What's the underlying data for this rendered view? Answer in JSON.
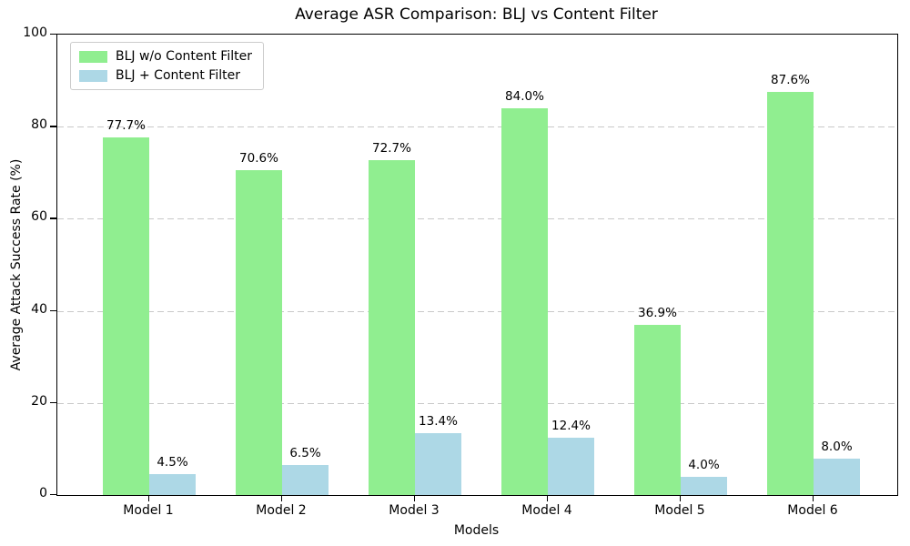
{
  "chart_data": {
    "type": "bar",
    "title": "Average ASR Comparison: BLJ vs Content Filter",
    "xlabel": "Models",
    "ylabel": "Average Attack Success Rate (%)",
    "categories": [
      "Model 1",
      "Model 2",
      "Model 3",
      "Model 4",
      "Model 5",
      "Model 6"
    ],
    "series": [
      {
        "name": "BLJ w/o Content Filter",
        "color": "#90EE90",
        "values": [
          77.7,
          70.6,
          72.7,
          84.0,
          36.9,
          87.6
        ],
        "labels": [
          "77.7%",
          "70.6%",
          "72.7%",
          "84.0%",
          "36.9%",
          "87.6%"
        ]
      },
      {
        "name": "BLJ + Content Filter",
        "color": "#ADD8E6",
        "values": [
          4.5,
          6.5,
          13.4,
          12.4,
          4.0,
          8.0
        ],
        "labels": [
          "4.5%",
          "6.5%",
          "13.4%",
          "12.4%",
          "4.0%",
          "8.0%"
        ]
      }
    ],
    "ylim": [
      0,
      100
    ],
    "yticks": [
      0,
      20,
      40,
      60,
      80,
      100
    ],
    "ytick_labels": [
      "0",
      "20",
      "40",
      "60",
      "80",
      "100"
    ],
    "grid": {
      "axis": "y",
      "style": "dashed",
      "color": "#c9c9c9"
    },
    "legend_position": "upper-left"
  }
}
